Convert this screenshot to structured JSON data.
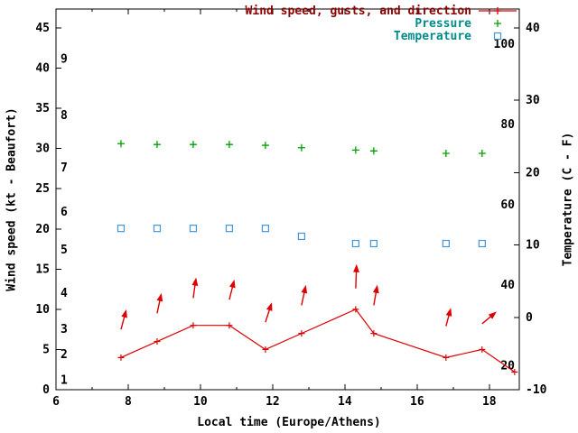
{
  "colors": {
    "background": "#ffffff",
    "axis": "#000000",
    "wind": "#dd0000",
    "wind_text": "#8b0000",
    "pressure": "#00a000",
    "temperature": "#4496d8",
    "secondary_text": "#008b8b"
  },
  "legend": {
    "items": [
      {
        "label": "Wind speed, gusts, and direction",
        "series": "wind"
      },
      {
        "label": "Pressure",
        "series": "pressure"
      },
      {
        "label": "Temperature",
        "series": "temperature"
      }
    ]
  },
  "chart_data": {
    "type": "line",
    "title": "",
    "xlabel": "Local time (Europe/Athens)",
    "ylabel_left": "Wind speed (kt - Beaufort)",
    "ylabel_right": "Temperature (C - F)",
    "legend_position": "top-right",
    "grid": false,
    "xlim": [
      6,
      18.83
    ],
    "x_major_ticks": [
      6,
      8,
      10,
      12,
      14,
      16,
      18
    ],
    "x_minor_ticks": [
      7,
      9,
      11,
      13,
      15,
      17
    ],
    "ylim_left": [
      0,
      47.35
    ],
    "left_ticks": [
      0,
      5,
      10,
      15,
      20,
      25,
      30,
      35,
      40,
      45
    ],
    "ylim_right": [
      -10,
      42.62
    ],
    "right_ticks": [
      -10,
      0,
      10,
      20,
      30,
      40
    ],
    "beaufort_scale": [
      {
        "label": "1",
        "kt": 1.2
      },
      {
        "label": "2",
        "kt": 4.4
      },
      {
        "label": "3",
        "kt": 7.5
      },
      {
        "label": "4",
        "kt": 12.0
      },
      {
        "label": "5",
        "kt": 17.4
      },
      {
        "label": "6",
        "kt": 22.1
      },
      {
        "label": "7",
        "kt": 27.6
      },
      {
        "label": "8",
        "kt": 34.1
      },
      {
        "label": "9",
        "kt": 41.1
      }
    ],
    "fahrenheit_ticks": [
      20,
      40,
      60,
      80,
      100
    ],
    "series": {
      "wind": {
        "x": [
          7.8,
          8.8,
          9.8,
          10.8,
          11.8,
          12.8,
          14.3,
          14.8,
          16.8,
          17.8,
          18.7
        ],
        "kt": [
          4,
          6,
          8,
          8,
          5,
          7,
          10,
          7,
          4,
          5,
          2.2
        ]
      },
      "pressure": {
        "x": [
          7.8,
          8.8,
          9.8,
          10.8,
          11.8,
          12.8,
          14.3,
          14.8,
          16.8,
          17.8
        ],
        "inHg": [
          30.6,
          30.5,
          30.5,
          30.5,
          30.4,
          30.1,
          29.8,
          29.7,
          29.4,
          29.4
        ]
      },
      "temperature": {
        "x": [
          7.8,
          8.8,
          9.8,
          10.8,
          11.8,
          12.8,
          14.3,
          14.8,
          16.8,
          17.8
        ],
        "C": [
          12.3,
          12.3,
          12.3,
          12.3,
          12.3,
          11.2,
          10.2,
          10.2,
          10.2,
          10.2
        ]
      },
      "gust_arrows": [
        {
          "x": 7.8,
          "base_kt": 7.5,
          "angle": 15,
          "len": 20
        },
        {
          "x": 8.8,
          "base_kt": 9.5,
          "angle": 12,
          "len": 20
        },
        {
          "x": 9.8,
          "base_kt": 11.4,
          "angle": 8,
          "len": 20
        },
        {
          "x": 10.8,
          "base_kt": 11.2,
          "angle": 14,
          "len": 20
        },
        {
          "x": 11.8,
          "base_kt": 8.4,
          "angle": 18,
          "len": 20
        },
        {
          "x": 12.8,
          "base_kt": 10.5,
          "angle": 12,
          "len": 20
        },
        {
          "x": 14.3,
          "base_kt": 12.6,
          "angle": 2,
          "len": 24
        },
        {
          "x": 14.8,
          "base_kt": 10.5,
          "angle": 10,
          "len": 20
        },
        {
          "x": 16.8,
          "base_kt": 7.9,
          "angle": 15,
          "len": 18
        },
        {
          "x": 17.8,
          "base_kt": 8.2,
          "angle": 50,
          "len": 18
        }
      ]
    }
  }
}
